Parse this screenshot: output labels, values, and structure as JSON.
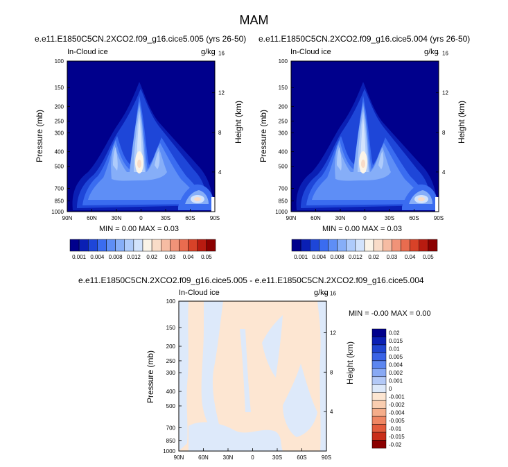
{
  "figure": {
    "title": "MAM",
    "difference_title": "e.e11.E1850C5CN.2XCO2.f09_g16.cice5.005 - e.e11.E1850C5CN.2XCO2.f09_g16.cice5.004"
  },
  "colors": {
    "abs_scale": [
      "#00008c",
      "#0a1fb4",
      "#1e46d8",
      "#3a6cf0",
      "#5e8ef6",
      "#86aef8",
      "#aecbfb",
      "#d2e3fc",
      "#fbf4e8",
      "#f9dcc8",
      "#f6bca3",
      "#f19378",
      "#e96c4f",
      "#d84228",
      "#b81b10",
      "#8b0000"
    ],
    "diff_scale": [
      "#00008c",
      "#0a1fb4",
      "#1f44d0",
      "#3a63e6",
      "#5c86f0",
      "#88a9f4",
      "#b3c9f7",
      "#dde9fa",
      "#fde6d2",
      "#f9cdb0",
      "#f5ad8a",
      "#ef8663",
      "#e35b3c",
      "#c92e1a",
      "#8b0000"
    ]
  },
  "panels": [
    {
      "title": "e.e11.E1850C5CN.2XCO2.f09_g16.cice5.005 (yrs 26-50)",
      "left_label": "In-Cloud ice",
      "right_label": "g/kg",
      "ylabel": "Pressure (mb)",
      "y2label": "Height (km)",
      "minmax": "MIN =  0.00  MAX =  0.03"
    },
    {
      "title": "e.e11.E1850C5CN.2XCO2.f09_g16.cice5.004 (yrs 26-50)",
      "left_label": "In-Cloud ice",
      "right_label": "g/kg",
      "ylabel": "Pressure (mb)",
      "y2label": "Height (km)",
      "minmax": "MIN =  0.00  MAX =  0.03"
    },
    {
      "title": "",
      "left_label": "In-Cloud ice",
      "right_label": "g/kg",
      "ylabel": "Pressure (mb)",
      "y2label": "Height (km)",
      "minmax": "MIN = -0.00  MAX =  0.00"
    }
  ],
  "axes": {
    "pressure_ticks": [
      "100",
      "150",
      "200",
      "250",
      "300",
      "400",
      "500",
      "700",
      "850",
      "1000"
    ],
    "pressure_values": [
      100,
      150,
      200,
      250,
      300,
      400,
      500,
      700,
      850,
      1000
    ],
    "height_ticks": [
      "4",
      "8",
      "12",
      "16"
    ],
    "height_values": [
      4,
      8,
      12,
      16
    ],
    "lat_ticks": [
      "90N",
      "60N",
      "30N",
      "0",
      "30S",
      "60S",
      "90S"
    ]
  },
  "colorbars": {
    "abs_labels": [
      "0.001",
      "0.004",
      "0.008",
      "0.012",
      "0.02",
      "0.03",
      "0.04",
      "0.05"
    ],
    "diff_labels": [
      "0.02",
      "0.015",
      "0.01",
      "0.005",
      "0.004",
      "0.002",
      "0.001",
      "0",
      "-0.001",
      "-0.002",
      "-0.004",
      "-0.005",
      "-0.01",
      "-0.015",
      "-0.02"
    ]
  },
  "chart_data": [
    {
      "type": "heatmap",
      "title": "e.e11.E1850C5CN.2XCO2.f09_g16.cice5.005 (yrs 26-50)",
      "variable": "In-Cloud ice",
      "units": "g/kg",
      "xlabel": "",
      "ylabel": "Pressure (mb)",
      "y2label": "Height (km)",
      "x_ticks": [
        "90N",
        "60N",
        "30N",
        "0",
        "30S",
        "60S",
        "90S"
      ],
      "y_ticks": [
        100,
        150,
        200,
        250,
        300,
        400,
        500,
        700,
        850,
        1000
      ],
      "y2_ticks": [
        4,
        8,
        12,
        16
      ],
      "min": 0.0,
      "max": 0.03,
      "features": [
        {
          "lat": 0,
          "pressure_top": 140,
          "pressure_center": 470,
          "peak": 0.02
        },
        {
          "lat": 15,
          "pressure_top": 250,
          "pressure_center": 380,
          "peak": 0.012
        },
        {
          "lat": -60,
          "pressure_top": 700,
          "pressure_center": 850,
          "peak": 0.02
        }
      ]
    },
    {
      "type": "heatmap",
      "title": "e.e11.E1850C5CN.2XCO2.f09_g16.cice5.004 (yrs 26-50)",
      "variable": "In-Cloud ice",
      "units": "g/kg",
      "xlabel": "",
      "ylabel": "Pressure (mb)",
      "y2label": "Height (km)",
      "x_ticks": [
        "90N",
        "60N",
        "30N",
        "0",
        "30S",
        "60S",
        "90S"
      ],
      "y_ticks": [
        100,
        150,
        200,
        250,
        300,
        400,
        500,
        700,
        850,
        1000
      ],
      "y2_ticks": [
        4,
        8,
        12,
        16
      ],
      "min": 0.0,
      "max": 0.03,
      "features": [
        {
          "lat": 0,
          "pressure_top": 140,
          "pressure_center": 470,
          "peak": 0.02
        },
        {
          "lat": 15,
          "pressure_top": 250,
          "pressure_center": 380,
          "peak": 0.012
        },
        {
          "lat": -60,
          "pressure_top": 700,
          "pressure_center": 850,
          "peak": 0.02
        }
      ]
    },
    {
      "type": "heatmap",
      "title": "e.e11.E1850C5CN.2XCO2.f09_g16.cice5.005 - e.e11.E1850C5CN.2XCO2.f09_g16.cice5.004",
      "variable": "In-Cloud ice",
      "units": "g/kg",
      "xlabel": "",
      "ylabel": "Pressure (mb)",
      "y2label": "Height (km)",
      "x_ticks": [
        "90N",
        "60N",
        "30N",
        "0",
        "30S",
        "60S",
        "90S"
      ],
      "y_ticks": [
        100,
        150,
        200,
        250,
        300,
        400,
        500,
        700,
        850,
        1000
      ],
      "y2_ticks": [
        4,
        8,
        12,
        16
      ],
      "min": -0.0,
      "max": 0.0
    }
  ]
}
